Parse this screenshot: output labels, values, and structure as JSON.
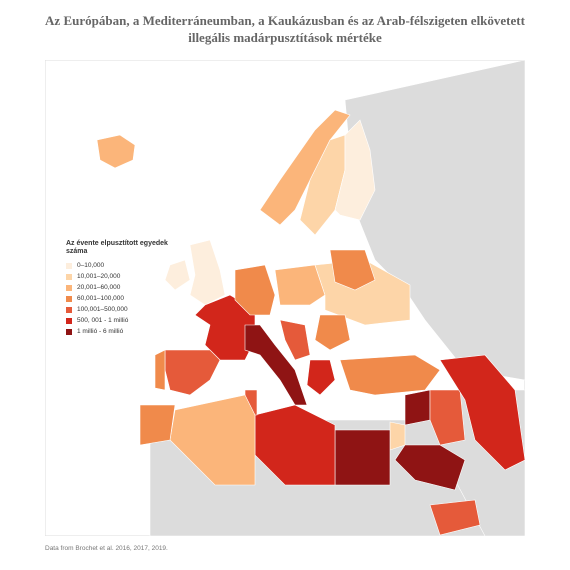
{
  "title": "Az Európában, a Mediterráneumban, a Kaukázusban és az Arab-félszigeten elkövetett illegális madárpusztítások mértéke",
  "legend": {
    "title": "Az évente elpusztított egyedek száma",
    "items": [
      {
        "label": "0–10,000",
        "color": "#fdeedd"
      },
      {
        "label": "10,001–20,000",
        "color": "#fdd5a8"
      },
      {
        "label": "20,001–60,000",
        "color": "#fbb57a"
      },
      {
        "label": "60,001–100,000",
        "color": "#f08a4b"
      },
      {
        "label": "100,001–500,000",
        "color": "#e55a3a"
      },
      {
        "label": "500, 001 - 1 millió",
        "color": "#d2261b"
      },
      {
        "label": "1 millió - 6 millió",
        "color": "#8f1414"
      }
    ]
  },
  "source": "Data from Brochet et al. 2016, 2017, 2019."
}
